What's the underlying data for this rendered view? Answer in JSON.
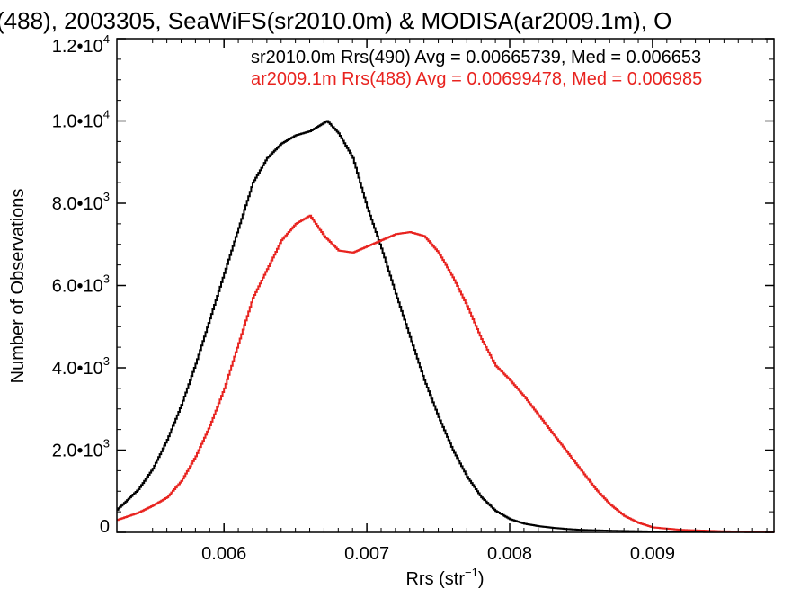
{
  "chart_data": {
    "type": "line",
    "step": true,
    "title": "(488), 2003305, SeaWiFS(sr2010.0m) & MODISA(ar2009.1m), O",
    "xlabel": "Rrs (str",
    "xlabel_sup": "−1",
    "xlabel_suffix": ")",
    "ylabel": "Number of Observations",
    "xlim": [
      0.00525,
      0.00985
    ],
    "ylim": [
      0,
      12000
    ],
    "x_ticks": [
      {
        "value": 0.006,
        "label": "0.006"
      },
      {
        "value": 0.007,
        "label": "0.007"
      },
      {
        "value": 0.008,
        "label": "0.008"
      },
      {
        "value": 0.009,
        "label": "0.009"
      }
    ],
    "y_ticks": [
      {
        "value": 0,
        "mant": "0",
        "exp": ""
      },
      {
        "value": 2000,
        "mant": "2.0•10",
        "exp": "3"
      },
      {
        "value": 4000,
        "mant": "4.0•10",
        "exp": "3"
      },
      {
        "value": 6000,
        "mant": "6.0•10",
        "exp": "3"
      },
      {
        "value": 8000,
        "mant": "8.0•10",
        "exp": "3"
      },
      {
        "value": 10000,
        "mant": "1.0•10",
        "exp": "4"
      },
      {
        "value": 12000,
        "mant": "1.2•10",
        "exp": "4"
      }
    ],
    "legend_position": "top-right",
    "series": [
      {
        "name": "sr2010.0m Rrs(490) Avg = 0.00665739, Med = 0.006653",
        "color": "#000000",
        "x": [
          0.00525,
          0.0054,
          0.0055,
          0.0056,
          0.0057,
          0.0058,
          0.0059,
          0.006,
          0.0061,
          0.0062,
          0.0063,
          0.0064,
          0.0065,
          0.0066,
          0.00672,
          0.0068,
          0.0069,
          0.007,
          0.0071,
          0.0072,
          0.0073,
          0.0074,
          0.0075,
          0.0076,
          0.0077,
          0.0078,
          0.0079,
          0.008,
          0.0081,
          0.0082,
          0.0083,
          0.0084,
          0.0085,
          0.0087,
          0.009,
          0.0093,
          0.00985
        ],
        "y": [
          550,
          1050,
          1550,
          2250,
          3100,
          4100,
          5200,
          6300,
          7400,
          8500,
          9100,
          9450,
          9650,
          9750,
          10000,
          9700,
          9100,
          7900,
          6900,
          5800,
          4750,
          3700,
          2800,
          2000,
          1350,
          850,
          520,
          320,
          210,
          150,
          110,
          80,
          60,
          40,
          20,
          10,
          5
        ]
      },
      {
        "name": "ar2009.1m Rrs(488) Avg = 0.00699478, Med = 0.006985",
        "color": "#e8231f",
        "x": [
          0.00525,
          0.0054,
          0.0055,
          0.0056,
          0.0057,
          0.0058,
          0.0059,
          0.006,
          0.0061,
          0.0062,
          0.0063,
          0.0064,
          0.0065,
          0.0066,
          0.0067,
          0.0068,
          0.0069,
          0.007,
          0.0071,
          0.0072,
          0.0073,
          0.0074,
          0.0075,
          0.0076,
          0.0077,
          0.0078,
          0.0079,
          0.008,
          0.0081,
          0.0082,
          0.0083,
          0.0084,
          0.0085,
          0.0086,
          0.0087,
          0.0088,
          0.0089,
          0.009,
          0.0092,
          0.0095,
          0.00985
        ],
        "y": [
          300,
          480,
          650,
          850,
          1250,
          1850,
          2600,
          3500,
          4600,
          5700,
          6400,
          7100,
          7500,
          7700,
          7200,
          6850,
          6800,
          6950,
          7100,
          7250,
          7300,
          7200,
          6800,
          6200,
          5500,
          4700,
          4050,
          3700,
          3300,
          2850,
          2400,
          1950,
          1500,
          1050,
          680,
          400,
          230,
          120,
          60,
          25,
          5
        ]
      }
    ]
  }
}
